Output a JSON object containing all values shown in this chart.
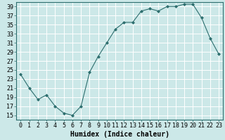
{
  "x": [
    0,
    1,
    2,
    3,
    4,
    5,
    6,
    7,
    8,
    9,
    10,
    11,
    12,
    13,
    14,
    15,
    16,
    17,
    18,
    19,
    20,
    21,
    22,
    23
  ],
  "y": [
    24,
    21,
    18.5,
    19.5,
    17,
    15.5,
    15,
    17,
    24.5,
    28,
    31,
    34,
    35.5,
    35.5,
    38,
    38.5,
    38,
    39,
    39,
    39.5,
    39.5,
    36.5,
    32,
    28.5
  ],
  "line_color": "#2d6e6e",
  "marker": "D",
  "marker_size": 2.0,
  "bg_color": "#cce8e8",
  "grid_color": "#b0d4d4",
  "xlabel": "Humidex (Indice chaleur)",
  "ylim": [
    14,
    40
  ],
  "xlim": [
    -0.5,
    23.5
  ],
  "yticks": [
    15,
    17,
    19,
    21,
    23,
    25,
    27,
    29,
    31,
    33,
    35,
    37,
    39
  ],
  "xticks": [
    0,
    1,
    2,
    3,
    4,
    5,
    6,
    7,
    8,
    9,
    10,
    11,
    12,
    13,
    14,
    15,
    16,
    17,
    18,
    19,
    20,
    21,
    22,
    23
  ],
  "xtick_labels": [
    "0",
    "1",
    "2",
    "3",
    "4",
    "5",
    "6",
    "7",
    "8",
    "9",
    "10",
    "11",
    "12",
    "13",
    "14",
    "15",
    "16",
    "17",
    "18",
    "19",
    "20",
    "21",
    "22",
    "23"
  ],
  "xlabel_fontsize": 7,
  "tick_fontsize": 6
}
